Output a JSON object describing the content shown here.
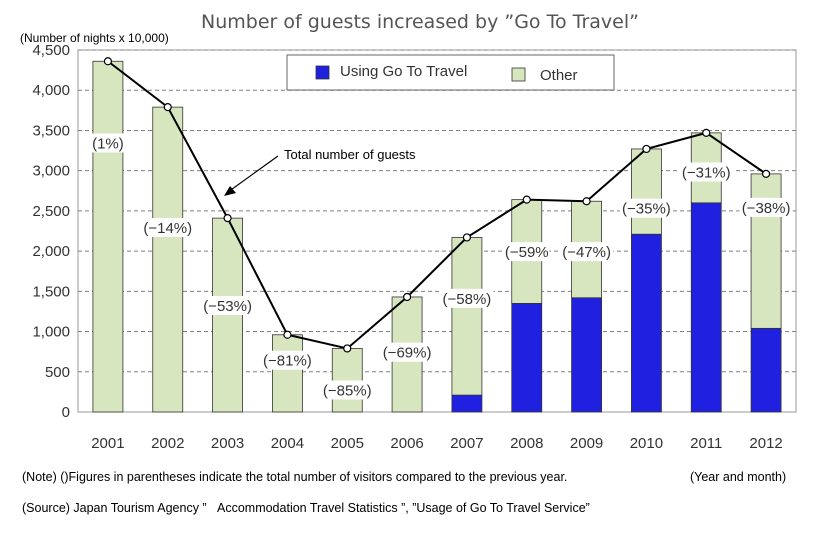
{
  "chart_data": {
    "type": "bar",
    "stacked": true,
    "title": "Number of guests increased by ”Go To Travel”",
    "ylabel": "(Number of nights x 10,000)",
    "xlabel_right": "(Year and month)",
    "ylim": [
      0,
      4500
    ],
    "yticks": [
      0,
      500,
      1000,
      1500,
      2000,
      2500,
      3000,
      3500,
      4000,
      4500
    ],
    "ytick_labels": [
      "0",
      "500",
      "1,000",
      "1,500",
      "2,000",
      "2,500",
      "3,000",
      "3,500",
      "4,000",
      "4,500"
    ],
    "grid": "horizontal dashed",
    "legend_position": "top-right",
    "categories": [
      "2001",
      "2002",
      "2003",
      "2004",
      "2005",
      "2006",
      "2007",
      "2008",
      "2009",
      "2010",
      "2011",
      "2012"
    ],
    "series": [
      {
        "name": "Using Go To Travel",
        "color": "#2020e0",
        "values": [
          0,
          0,
          0,
          0,
          0,
          0,
          210,
          1350,
          1420,
          2210,
          2600,
          1040
        ]
      },
      {
        "name": "Other",
        "color": "#d8e6c0",
        "values": [
          4360,
          3790,
          2410,
          960,
          790,
          1430,
          1960,
          1290,
          1200,
          1060,
          870,
          1920
        ]
      }
    ],
    "line": {
      "label": "Total number of guests",
      "values": [
        4360,
        3790,
        2410,
        960,
        790,
        1430,
        2170,
        2640,
        2620,
        3270,
        3470,
        2960
      ]
    },
    "percent_labels": [
      "(1%)",
      "(−14%)",
      "(−53%)",
      "(−81%)",
      "(−85%)",
      "(−69%)",
      "(−58%)",
      "(−59%",
      "(−47%)",
      "(−35%)",
      "(−31%)",
      "(−38%)"
    ],
    "percent_label_values": [
      3300,
      2250,
      1280,
      600,
      230,
      700,
      1370,
      1950,
      1950,
      2490,
      2940,
      2500
    ],
    "colors": {
      "bar_border": "#333333",
      "line": "#000000",
      "grid": "#808080"
    }
  },
  "notes": {
    "note": "(Note) ()Figures in parentheses indicate the total number of visitors compared to the previous year.",
    "source": "(Source) Japan Tourism Agency ”   Accommodation Travel Statistics ”, ”Usage of Go To Travel Service”"
  }
}
